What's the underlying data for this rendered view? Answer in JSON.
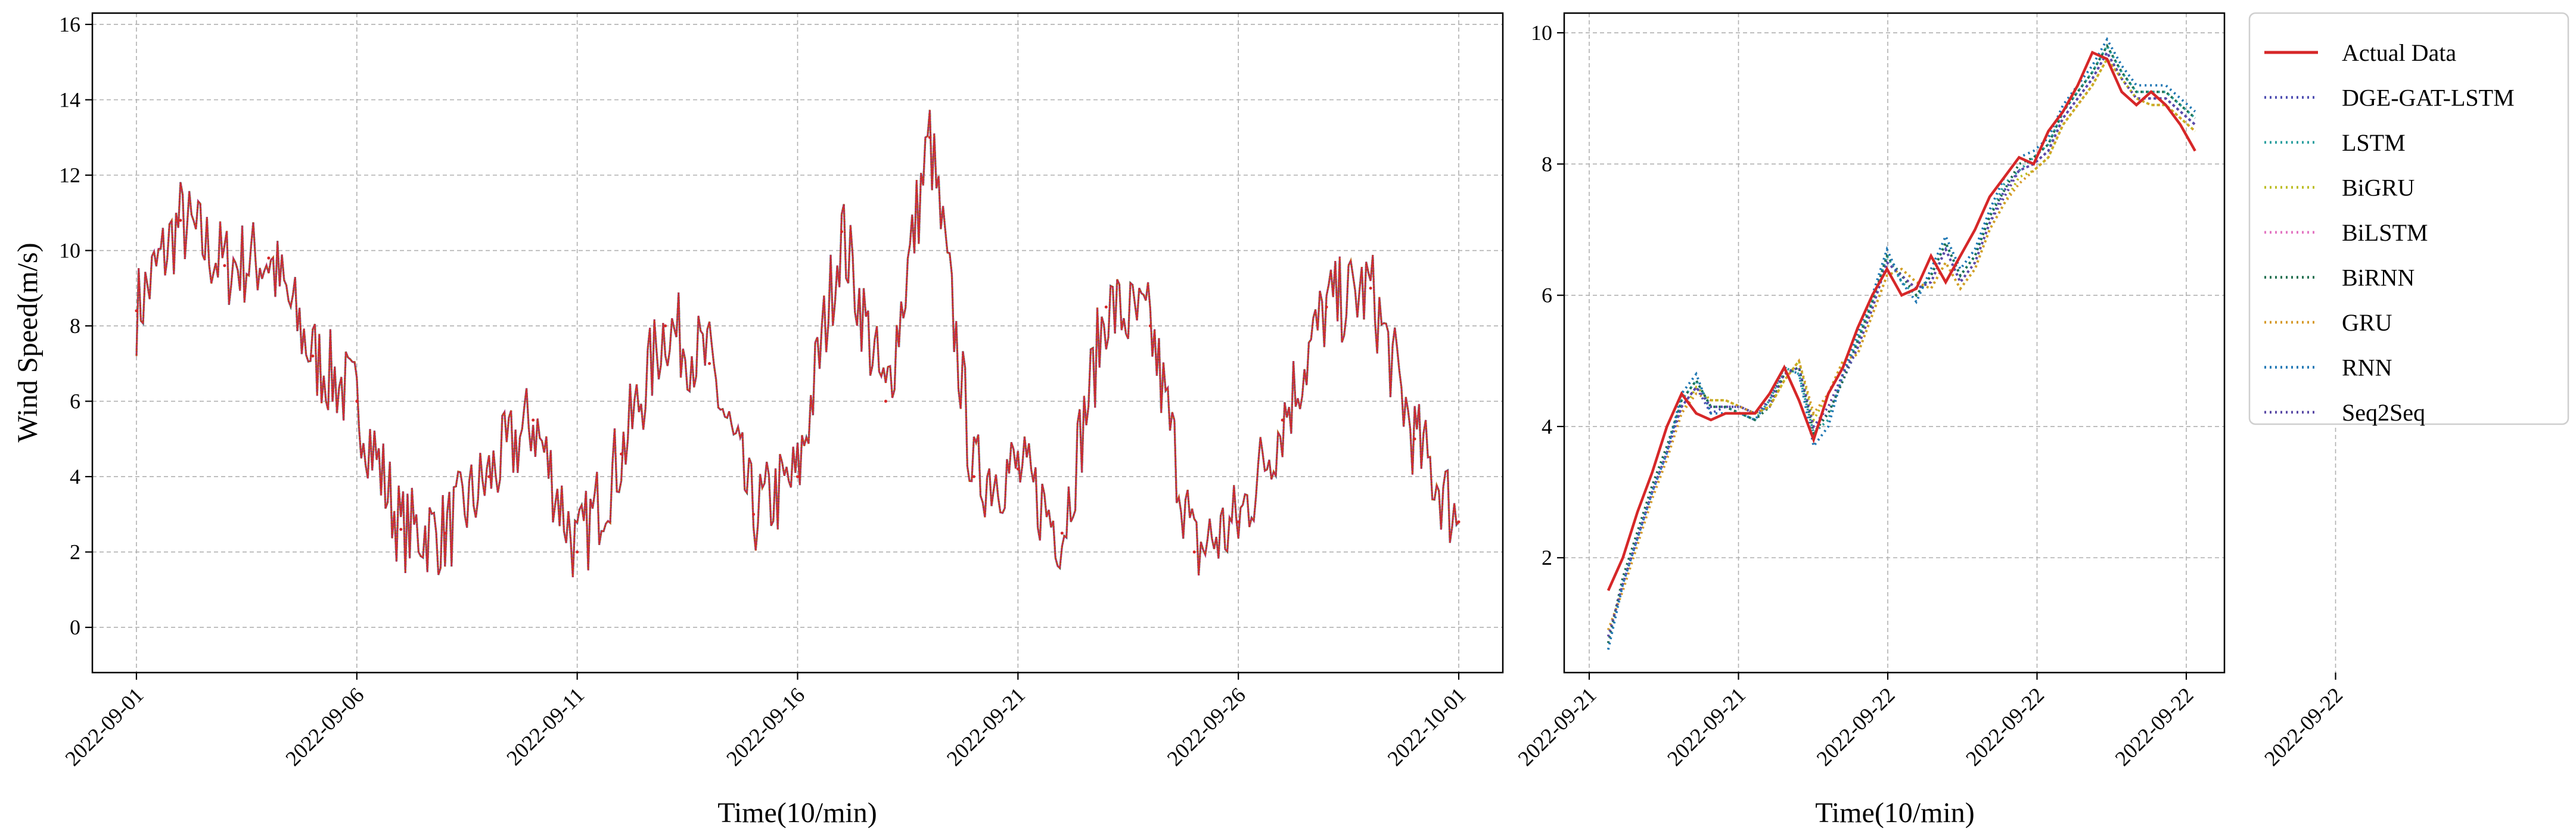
{
  "chart_data": [
    {
      "type": "line",
      "title": "",
      "xlabel": "Time(10/min)",
      "ylabel": "Wind Speed(m/s)",
      "x_tick_labels": [
        "2022-09-01",
        "2022-09-06",
        "2022-09-11",
        "2022-09-16",
        "2022-09-21",
        "2022-09-26",
        "2022-10-01"
      ],
      "y_tick_labels": [
        "0",
        "2",
        "4",
        "6",
        "8",
        "10",
        "12",
        "14",
        "16"
      ],
      "xlim": [
        "2022-08-31",
        "2022-10-02"
      ],
      "ylim": [
        -1.2,
        16.3
      ],
      "grid": true,
      "series": [
        {
          "name": "Actual Data",
          "color": "#d62728",
          "style": "solid",
          "x": [
            "2022-09-01",
            "2022-09-02",
            "2022-09-03",
            "2022-09-04",
            "2022-09-05",
            "2022-09-06",
            "2022-09-07",
            "2022-09-08",
            "2022-09-09",
            "2022-09-10",
            "2022-09-11",
            "2022-09-12",
            "2022-09-13",
            "2022-09-14",
            "2022-09-15",
            "2022-09-16",
            "2022-09-17",
            "2022-09-18",
            "2022-09-19",
            "2022-09-20",
            "2022-09-21",
            "2022-09-22",
            "2022-09-23",
            "2022-09-24",
            "2022-09-25",
            "2022-09-26",
            "2022-09-27",
            "2022-09-28",
            "2022-09-29",
            "2022-09-30",
            "2022-10-01"
          ],
          "values": [
            8.4,
            10.8,
            9.6,
            9.8,
            7.2,
            6.0,
            2.6,
            2.5,
            4.0,
            5.5,
            2.0,
            4.6,
            8.0,
            7.0,
            3.0,
            4.0,
            10.5,
            6.0,
            13.0,
            4.0,
            4.2,
            2.5,
            8.5,
            8.0,
            2.0,
            2.8,
            5.5,
            8.5,
            9.0,
            5.0,
            2.8
          ]
        }
      ]
    },
    {
      "type": "line",
      "title": "",
      "xlabel": "Time(10/min)",
      "ylabel": "",
      "x_tick_labels": [
        "2022-09-21",
        "2022-09-21",
        "2022-09-22",
        "2022-09-22",
        "2022-09-22",
        "2022-09-22"
      ],
      "y_tick_labels": [
        "2",
        "4",
        "6",
        "8",
        "10"
      ],
      "ylim": [
        0.25,
        10.3
      ],
      "grid": true,
      "legend_position": "outside top-right",
      "x": [
        0,
        2,
        4,
        6,
        8,
        10,
        12,
        14,
        16,
        18,
        20,
        22,
        24,
        26,
        28,
        30,
        32,
        34,
        36,
        38,
        40,
        42,
        44,
        46,
        48,
        50,
        52,
        54,
        56,
        58,
        60,
        62,
        64,
        66,
        68,
        70,
        72,
        74,
        76,
        78,
        80
      ],
      "series": [
        {
          "name": "Actual Data",
          "color": "#d62728",
          "style": "solid",
          "values": [
            1.5,
            2.0,
            2.7,
            3.3,
            4.0,
            4.5,
            4.2,
            4.1,
            4.2,
            4.2,
            4.2,
            4.5,
            4.9,
            4.4,
            3.8,
            4.5,
            4.9,
            5.5,
            6.0,
            6.4,
            6.0,
            6.1,
            6.6,
            6.2,
            6.6,
            7.0,
            7.5,
            7.8,
            8.1,
            8.0,
            8.5,
            8.8,
            9.2,
            9.7,
            9.6,
            9.1,
            8.9,
            9.1,
            8.9,
            8.6,
            8.2
          ]
        },
        {
          "name": "DGE-GAT-LSTM",
          "color": "#4c4cb0",
          "style": "dotted",
          "values": [
            0.7,
            1.7,
            2.4,
            3.1,
            3.7,
            4.3,
            4.6,
            4.2,
            4.3,
            4.3,
            4.2,
            4.3,
            4.8,
            4.9,
            4.0,
            4.2,
            4.7,
            5.2,
            5.8,
            6.5,
            6.3,
            6.1,
            6.2,
            6.7,
            6.2,
            6.5,
            7.1,
            7.6,
            7.9,
            8.0,
            8.2,
            8.7,
            9.0,
            9.3,
            9.7,
            9.3,
            9.0,
            9.0,
            9.0,
            8.8,
            8.6
          ]
        },
        {
          "name": "LSTM",
          "color": "#2ca0a0",
          "style": "dotted",
          "values": [
            0.8,
            1.6,
            2.3,
            3.0,
            3.6,
            4.4,
            4.7,
            4.3,
            4.3,
            4.2,
            4.1,
            4.4,
            4.9,
            4.8,
            3.9,
            4.1,
            4.8,
            5.3,
            5.9,
            6.6,
            6.2,
            6.0,
            6.3,
            6.8,
            6.3,
            6.6,
            7.2,
            7.7,
            7.9,
            8.1,
            8.3,
            8.8,
            9.1,
            9.4,
            9.8,
            9.4,
            9.1,
            9.1,
            9.1,
            8.9,
            8.7
          ]
        },
        {
          "name": "BiGRU",
          "color": "#bcbd22",
          "style": "dotted",
          "values": [
            0.9,
            1.5,
            2.2,
            2.9,
            3.5,
            4.2,
            4.6,
            4.4,
            4.4,
            4.3,
            4.2,
            4.3,
            4.7,
            5.0,
            4.1,
            4.5,
            5.0,
            5.1,
            5.7,
            6.3,
            6.4,
            6.2,
            6.1,
            6.5,
            6.1,
            6.4,
            7.0,
            7.4,
            7.8,
            7.9,
            8.1,
            8.6,
            8.9,
            9.2,
            9.6,
            9.3,
            9.0,
            8.9,
            8.9,
            8.7,
            8.5
          ]
        },
        {
          "name": "BiLSTM",
          "color": "#e377c2",
          "style": "dotted",
          "values": [
            0.8,
            1.6,
            2.3,
            3.0,
            3.6,
            4.3,
            4.6,
            4.3,
            4.3,
            4.3,
            4.2,
            4.4,
            4.8,
            4.9,
            4.0,
            4.3,
            4.8,
            5.2,
            5.8,
            6.5,
            6.3,
            6.1,
            6.2,
            6.7,
            6.2,
            6.5,
            7.1,
            7.5,
            7.9,
            8.0,
            8.2,
            8.7,
            9.0,
            9.3,
            9.7,
            9.3,
            9.0,
            9.0,
            9.0,
            8.8,
            8.6
          ]
        },
        {
          "name": "BiRNN",
          "color": "#1f6e4e",
          "style": "dotted",
          "values": [
            0.7,
            1.7,
            2.4,
            3.1,
            3.7,
            4.4,
            4.7,
            4.3,
            4.3,
            4.2,
            4.1,
            4.3,
            4.8,
            4.9,
            3.9,
            4.2,
            4.7,
            5.3,
            5.9,
            6.6,
            6.3,
            6.0,
            6.3,
            6.8,
            6.3,
            6.6,
            7.2,
            7.6,
            8.0,
            8.1,
            8.3,
            8.8,
            9.1,
            9.4,
            9.8,
            9.4,
            9.1,
            9.1,
            9.1,
            8.9,
            8.7
          ]
        },
        {
          "name": "GRU",
          "color": "#d69a2a",
          "style": "dotted",
          "values": [
            0.9,
            1.5,
            2.2,
            2.9,
            3.5,
            4.2,
            4.5,
            4.4,
            4.4,
            4.3,
            4.2,
            4.3,
            4.7,
            5.0,
            4.2,
            4.5,
            5.0,
            5.1,
            5.7,
            6.3,
            6.4,
            6.2,
            6.1,
            6.5,
            6.1,
            6.4,
            7.0,
            7.4,
            7.7,
            7.9,
            8.1,
            8.6,
            8.9,
            9.2,
            9.6,
            9.3,
            9.0,
            8.9,
            8.9,
            8.7,
            8.5
          ]
        },
        {
          "name": "RNN",
          "color": "#1f77b4",
          "style": "dotted",
          "values": [
            0.6,
            1.6,
            2.3,
            3.0,
            3.6,
            4.5,
            4.8,
            4.2,
            4.2,
            4.2,
            4.1,
            4.4,
            4.9,
            4.8,
            3.7,
            4.0,
            4.8,
            5.4,
            6.0,
            6.7,
            6.2,
            5.9,
            6.4,
            6.9,
            6.4,
            6.7,
            7.3,
            7.8,
            8.1,
            8.2,
            8.4,
            8.9,
            9.2,
            9.5,
            9.9,
            9.5,
            9.2,
            9.2,
            9.2,
            9.0,
            8.8
          ]
        },
        {
          "name": "Seq2Seq",
          "color": "#5a4aa6",
          "style": "dotted",
          "values": [
            0.8,
            1.6,
            2.3,
            3.0,
            3.6,
            4.3,
            4.6,
            4.3,
            4.3,
            4.3,
            4.2,
            4.4,
            4.8,
            4.9,
            4.0,
            4.3,
            4.8,
            5.2,
            5.8,
            6.5,
            6.3,
            6.1,
            6.2,
            6.7,
            6.2,
            6.5,
            7.1,
            7.5,
            7.9,
            8.0,
            8.2,
            8.7,
            9.0,
            9.3,
            9.7,
            9.3,
            9.0,
            9.0,
            9.0,
            8.8,
            8.6
          ]
        }
      ]
    }
  ]
}
